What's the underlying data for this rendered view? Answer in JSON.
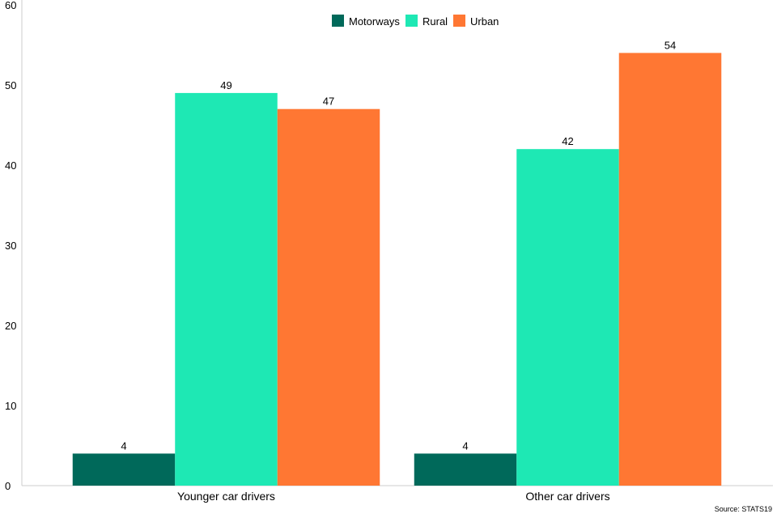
{
  "chart_data": {
    "type": "bar",
    "categories": [
      "Younger car drivers",
      "Other car drivers"
    ],
    "series": [
      {
        "name": "Motorways",
        "values": [
          4,
          4
        ],
        "color": "#00695a"
      },
      {
        "name": "Rural",
        "values": [
          49,
          42
        ],
        "color": "#1ee8b4"
      },
      {
        "name": "Urban",
        "values": [
          47,
          54
        ],
        "color": "#ff7733"
      }
    ],
    "ylim": [
      0,
      60
    ],
    "yticks": [
      0,
      10,
      20,
      30,
      40,
      50,
      60
    ],
    "title": "",
    "xlabel": "",
    "ylabel": "",
    "grid": false,
    "legend_position": "top-center",
    "data_labels": true
  },
  "source_text": "Source: STATS19"
}
